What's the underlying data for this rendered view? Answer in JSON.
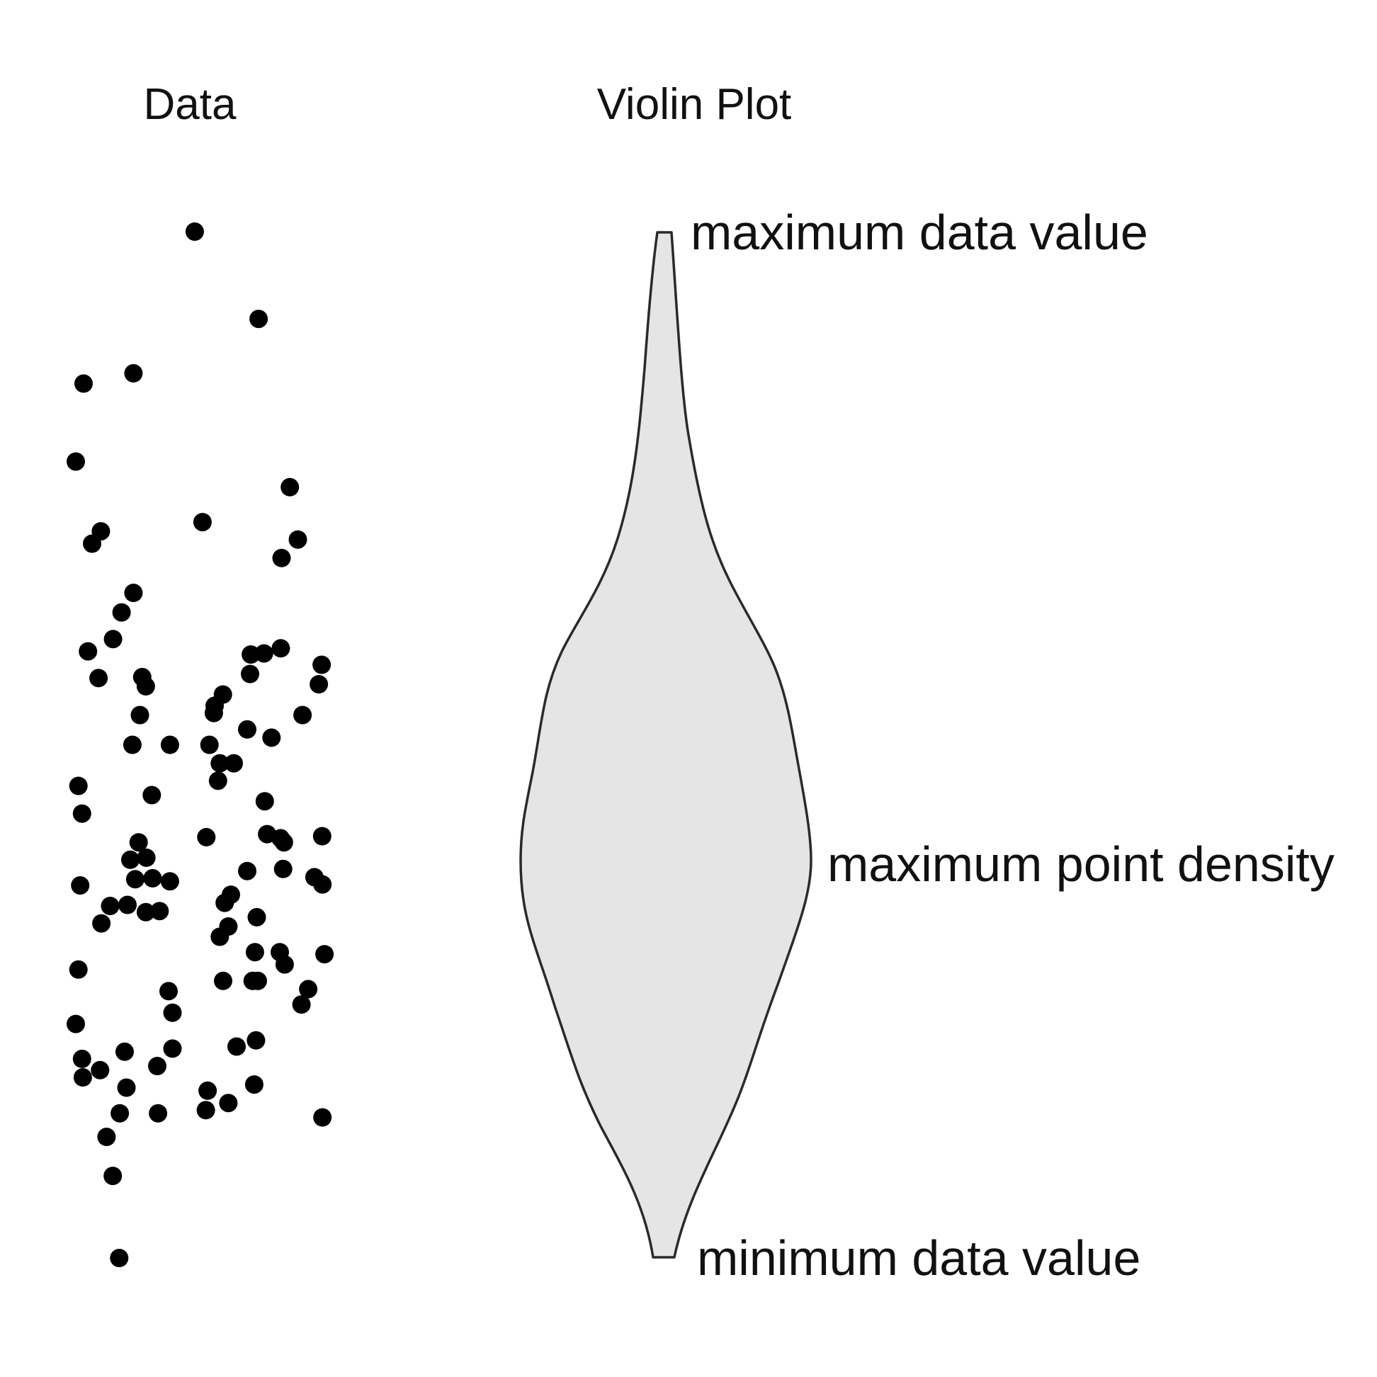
{
  "panels": {
    "data_title": "Data",
    "violin_title": "Violin Plot"
  },
  "annotations": {
    "max_value": "maximum data value",
    "max_density": "maximum point density",
    "min_value": "minimum data value"
  },
  "colors": {
    "points": "#000000",
    "violin_fill": "#e5e5e5",
    "violin_outline": "#2a2a2a",
    "text": "#111111"
  },
  "chart_data": {
    "type": "scatter",
    "description_free": true,
    "x_range": [
      0,
      1
    ],
    "y_range": [
      0,
      1
    ],
    "points": [
      {
        "x": 0.46,
        "y": 1.0
      },
      {
        "x": 0.707,
        "y": 0.915
      },
      {
        "x": 0.03,
        "y": 0.852
      },
      {
        "x": 0.223,
        "y": 0.862
      },
      {
        "x": 0.0,
        "y": 0.776
      },
      {
        "x": 0.828,
        "y": 0.751
      },
      {
        "x": 0.49,
        "y": 0.717
      },
      {
        "x": 0.097,
        "y": 0.708
      },
      {
        "x": 0.063,
        "y": 0.696
      },
      {
        "x": 0.859,
        "y": 0.7
      },
      {
        "x": 0.796,
        "y": 0.682
      },
      {
        "x": 0.223,
        "y": 0.648
      },
      {
        "x": 0.177,
        "y": 0.629
      },
      {
        "x": 0.144,
        "y": 0.603
      },
      {
        "x": 0.047,
        "y": 0.591
      },
      {
        "x": 0.257,
        "y": 0.566
      },
      {
        "x": 0.271,
        "y": 0.557
      },
      {
        "x": 0.088,
        "y": 0.565
      },
      {
        "x": 0.677,
        "y": 0.588
      },
      {
        "x": 0.728,
        "y": 0.589
      },
      {
        "x": 0.793,
        "y": 0.594
      },
      {
        "x": 0.674,
        "y": 0.569
      },
      {
        "x": 0.569,
        "y": 0.549
      },
      {
        "x": 0.537,
        "y": 0.538
      },
      {
        "x": 0.534,
        "y": 0.531
      },
      {
        "x": 0.951,
        "y": 0.578
      },
      {
        "x": 0.94,
        "y": 0.559
      },
      {
        "x": 0.877,
        "y": 0.529
      },
      {
        "x": 0.248,
        "y": 0.529
      },
      {
        "x": 0.757,
        "y": 0.507
      },
      {
        "x": 0.663,
        "y": 0.515
      },
      {
        "x": 0.364,
        "y": 0.5
      },
      {
        "x": 0.219,
        "y": 0.5
      },
      {
        "x": 0.517,
        "y": 0.5
      },
      {
        "x": 0.557,
        "y": 0.482
      },
      {
        "x": 0.611,
        "y": 0.482
      },
      {
        "x": 0.55,
        "y": 0.465
      },
      {
        "x": 0.01,
        "y": 0.46
      },
      {
        "x": 0.024,
        "y": 0.433
      },
      {
        "x": 0.294,
        "y": 0.451
      },
      {
        "x": 0.731,
        "y": 0.445
      },
      {
        "x": 0.74,
        "y": 0.413
      },
      {
        "x": 0.792,
        "y": 0.409
      },
      {
        "x": 0.805,
        "y": 0.405
      },
      {
        "x": 0.505,
        "y": 0.41
      },
      {
        "x": 0.953,
        "y": 0.411
      },
      {
        "x": 0.243,
        "y": 0.405
      },
      {
        "x": 0.273,
        "y": 0.39
      },
      {
        "x": 0.211,
        "y": 0.388
      },
      {
        "x": 0.802,
        "y": 0.379
      },
      {
        "x": 0.663,
        "y": 0.377
      },
      {
        "x": 0.923,
        "y": 0.371
      },
      {
        "x": 0.954,
        "y": 0.364
      },
      {
        "x": 0.23,
        "y": 0.369
      },
      {
        "x": 0.297,
        "y": 0.37
      },
      {
        "x": 0.364,
        "y": 0.367
      },
      {
        "x": 0.017,
        "y": 0.363
      },
      {
        "x": 0.6,
        "y": 0.354
      },
      {
        "x": 0.576,
        "y": 0.346
      },
      {
        "x": 0.133,
        "y": 0.343
      },
      {
        "x": 0.2,
        "y": 0.344
      },
      {
        "x": 0.271,
        "y": 0.337
      },
      {
        "x": 0.324,
        "y": 0.338
      },
      {
        "x": 0.7,
        "y": 0.332
      },
      {
        "x": 0.59,
        "y": 0.323
      },
      {
        "x": 0.099,
        "y": 0.326
      },
      {
        "x": 0.557,
        "y": 0.313
      },
      {
        "x": 0.693,
        "y": 0.298
      },
      {
        "x": 0.789,
        "y": 0.298
      },
      {
        "x": 0.962,
        "y": 0.296
      },
      {
        "x": 0.808,
        "y": 0.286
      },
      {
        "x": 0.01,
        "y": 0.281
      },
      {
        "x": 0.57,
        "y": 0.27
      },
      {
        "x": 0.684,
        "y": 0.27
      },
      {
        "x": 0.704,
        "y": 0.27
      },
      {
        "x": 0.359,
        "y": 0.26
      },
      {
        "x": 0.374,
        "y": 0.239
      },
      {
        "x": 0.899,
        "y": 0.262
      },
      {
        "x": 0.873,
        "y": 0.247
      },
      {
        "x": 0.0,
        "y": 0.228
      },
      {
        "x": 0.697,
        "y": 0.212
      },
      {
        "x": 0.622,
        "y": 0.206
      },
      {
        "x": 0.374,
        "y": 0.204
      },
      {
        "x": 0.189,
        "y": 0.201
      },
      {
        "x": 0.024,
        "y": 0.194
      },
      {
        "x": 0.315,
        "y": 0.187
      },
      {
        "x": 0.094,
        "y": 0.183
      },
      {
        "x": 0.027,
        "y": 0.176
      },
      {
        "x": 0.69,
        "y": 0.169
      },
      {
        "x": 0.196,
        "y": 0.166
      },
      {
        "x": 0.51,
        "y": 0.163
      },
      {
        "x": 0.59,
        "y": 0.151
      },
      {
        "x": 0.503,
        "y": 0.144
      },
      {
        "x": 0.17,
        "y": 0.141
      },
      {
        "x": 0.318,
        "y": 0.141
      },
      {
        "x": 0.954,
        "y": 0.137
      },
      {
        "x": 0.119,
        "y": 0.118
      },
      {
        "x": 0.143,
        "y": 0.08
      },
      {
        "x": 0.168,
        "y": 0.0
      }
    ]
  }
}
